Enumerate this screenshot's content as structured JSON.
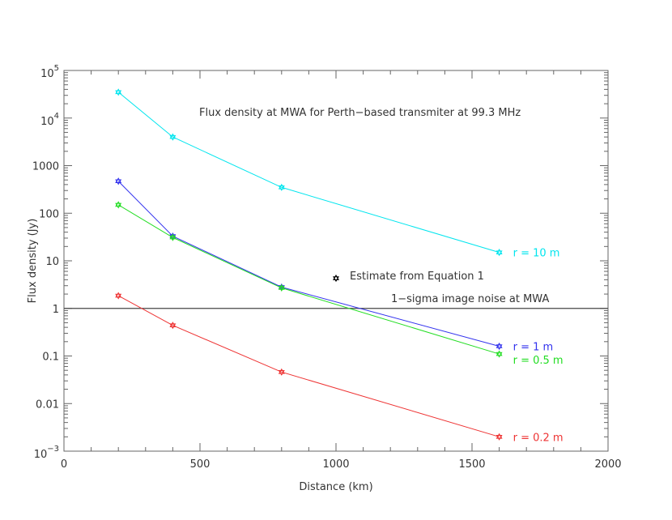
{
  "chart_data": {
    "type": "line",
    "title": "",
    "xlabel": "Distance (km)",
    "ylabel": "Flux density (Jy)",
    "xlim": [
      0,
      2000
    ],
    "ylim": [
      0.001,
      100000
    ],
    "yscale": "log",
    "grid": false,
    "x_ticks": [
      {
        "value": 0,
        "label": "0"
      },
      {
        "value": 500,
        "label": "500"
      },
      {
        "value": 1000,
        "label": "1000"
      },
      {
        "value": 1500,
        "label": "1500"
      },
      {
        "value": 2000,
        "label": "2000"
      }
    ],
    "y_ticks": [
      {
        "value": 0.001,
        "base": "10",
        "exp": "−3",
        "plain": ""
      },
      {
        "value": 0.01,
        "base": "",
        "exp": "",
        "plain": "0.01"
      },
      {
        "value": 0.1,
        "base": "",
        "exp": "",
        "plain": "0.1"
      },
      {
        "value": 1,
        "base": "",
        "exp": "",
        "plain": "1"
      },
      {
        "value": 10,
        "base": "",
        "exp": "",
        "plain": "10"
      },
      {
        "value": 100,
        "base": "",
        "exp": "",
        "plain": "100"
      },
      {
        "value": 1000,
        "base": "",
        "exp": "",
        "plain": "1000"
      },
      {
        "value": 10000,
        "base": "10",
        "exp": "4",
        "plain": ""
      },
      {
        "value": 100000,
        "base": "10",
        "exp": "5",
        "plain": ""
      }
    ],
    "x": [
      200,
      400,
      800,
      1600
    ],
    "series": [
      {
        "name": "r = 10 m",
        "color": "#00e5ee",
        "values": [
          35000,
          4000,
          350,
          15
        ]
      },
      {
        "name": "r = 1 m",
        "color": "#3333ee",
        "values": [
          470,
          33,
          2.8,
          0.16
        ]
      },
      {
        "name": "r = 0.5 m",
        "color": "#22dd22",
        "values": [
          150,
          31,
          2.7,
          0.11
        ]
      },
      {
        "name": "r = 0.2 m",
        "color": "#ee3333",
        "values": [
          1.85,
          0.44,
          0.046,
          0.002
        ]
      }
    ],
    "reference_line": {
      "value": 1,
      "label": "1−sigma image noise at MWA",
      "color": "#444444"
    },
    "estimate_point": {
      "x": 1000,
      "y": 4.3,
      "label": "Estimate from Equation 1",
      "color": "#000000"
    },
    "annotation": "Flux density at MWA for Perth−based transmiter at 99.3 MHz"
  }
}
